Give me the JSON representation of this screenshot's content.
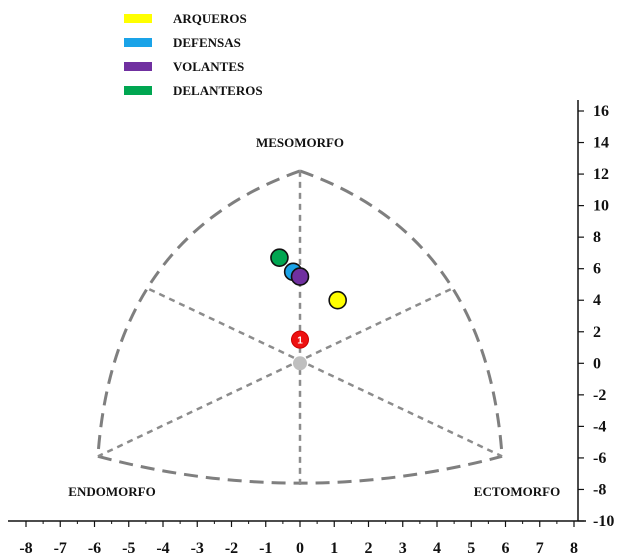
{
  "chart_data": {
    "type": "scatter",
    "title": "",
    "chart_kind": "somatochart",
    "legend_position": "top-left",
    "xlim": [
      -8,
      8
    ],
    "ylim": [
      -10,
      16
    ],
    "x_ticks": [
      -8,
      -7,
      -6,
      -5,
      -4,
      -3,
      -2,
      -1,
      0,
      1,
      2,
      3,
      4,
      5,
      6,
      7,
      8
    ],
    "y_ticks": [
      16,
      14,
      12,
      10,
      8,
      6,
      4,
      2,
      0,
      -2,
      -4,
      -6,
      -8,
      -10
    ],
    "grid": false,
    "corner_labels": {
      "mesomorph": "MESOMORFO",
      "endomorph": "ENDOMORFO",
      "ectomorph": "ECTOMORFO"
    },
    "legend": [
      {
        "name": "ARQUEROS",
        "color": "#ffff00"
      },
      {
        "name": "DEFENSAS",
        "color": "#1aa3e8"
      },
      {
        "name": "VOLANTES",
        "color": "#7030a0"
      },
      {
        "name": "DELANTEROS",
        "color": "#00a651"
      }
    ],
    "series": [
      {
        "name": "ARQUEROS",
        "color": "#ffff00",
        "x": 1.1,
        "y": 4.0
      },
      {
        "name": "DELANTEROS",
        "color": "#00a651",
        "x": -0.6,
        "y": 6.7
      },
      {
        "name": "DEFENSAS",
        "color": "#1aa3e8",
        "x": -0.2,
        "y": 5.8
      },
      {
        "name": "VOLANTES",
        "color": "#7030a0",
        "x": 0.0,
        "y": 5.5
      }
    ],
    "extra_points": [
      {
        "color": "#ee1111",
        "x": 0.0,
        "y": 1.5,
        "label": "1"
      },
      {
        "color": "#bfbfbf",
        "x": 0.0,
        "y": 0.0,
        "label": ""
      }
    ],
    "frame": {
      "top": [
        0,
        12.2
      ],
      "left": [
        -5.9,
        -5.9
      ],
      "right": [
        5.9,
        -5.9
      ],
      "left_mid": [
        -4.4,
        4.7
      ],
      "right_mid": [
        4.4,
        4.7
      ],
      "bottom_mid": [
        0,
        -7.6
      ],
      "center": [
        0,
        0
      ]
    }
  }
}
